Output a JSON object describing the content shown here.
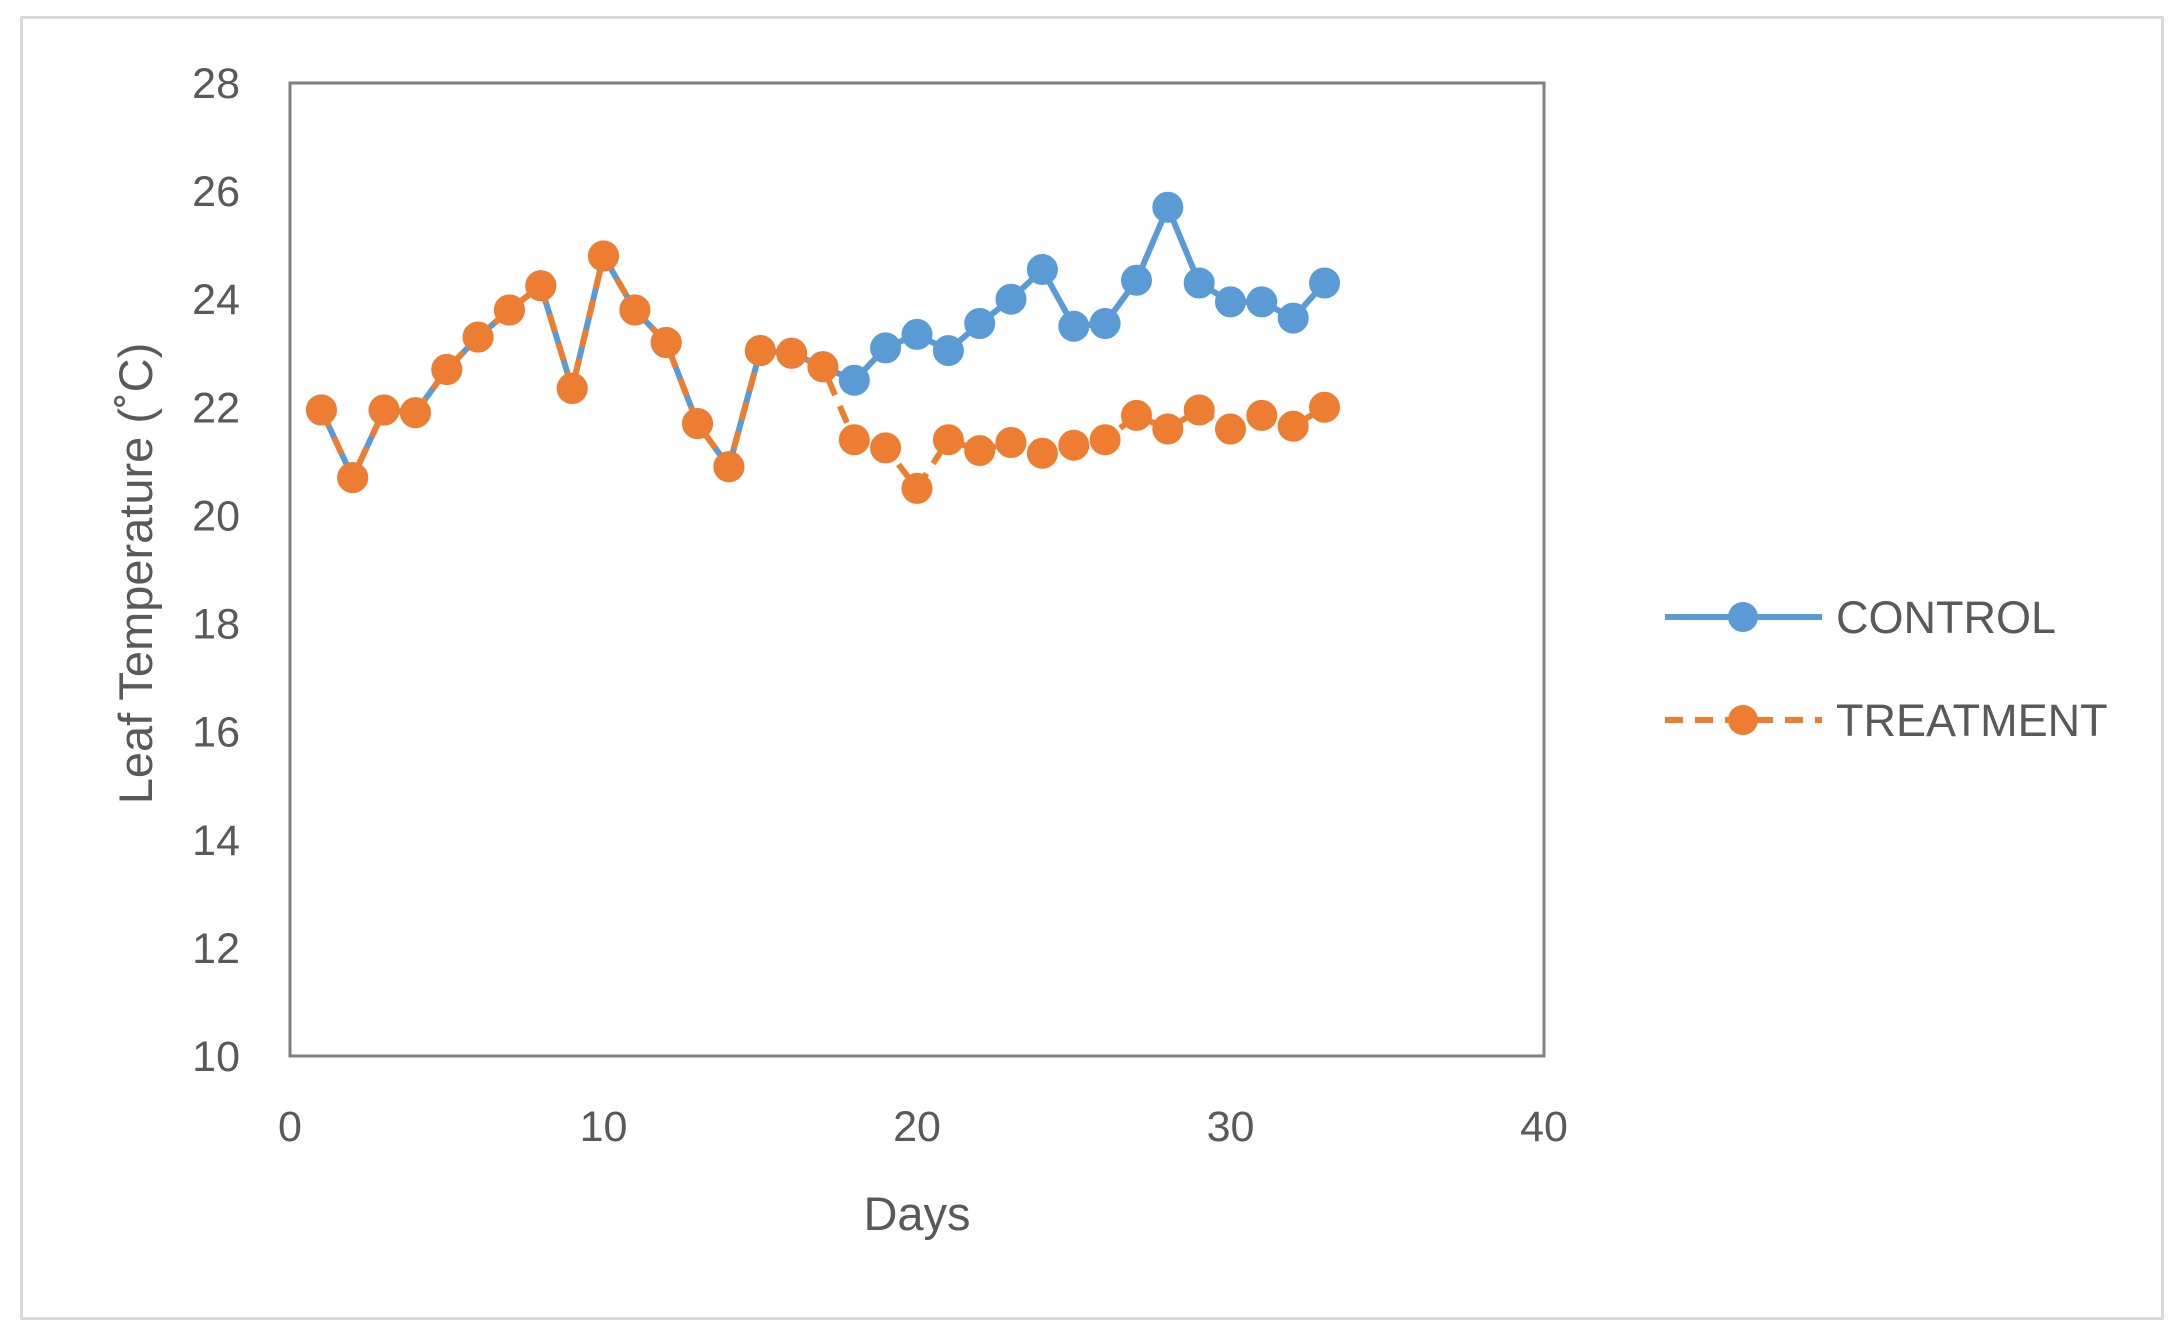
{
  "chart_data": {
    "type": "line",
    "title": "",
    "xlabel": "Days",
    "ylabel": "Leaf Temperature (˚C)",
    "xlim": [
      0,
      40
    ],
    "ylim": [
      10,
      28
    ],
    "x_ticks": [
      0,
      10,
      20,
      30,
      40
    ],
    "y_ticks": [
      10,
      12,
      14,
      16,
      18,
      20,
      22,
      24,
      26,
      28
    ],
    "grid": false,
    "legend_position": "right",
    "series": [
      {
        "name": "CONTROL",
        "color": "#5b9bd5",
        "line_style": "solid",
        "marker": "circle",
        "x": [
          1,
          2,
          3,
          4,
          5,
          6,
          7,
          8,
          9,
          10,
          11,
          12,
          13,
          14,
          15,
          16,
          17,
          18,
          19,
          20,
          21,
          22,
          23,
          24,
          25,
          26,
          27,
          28,
          29,
          30,
          31,
          32,
          33
        ],
        "y": [
          21.95,
          20.7,
          21.95,
          21.9,
          22.7,
          23.3,
          23.8,
          24.25,
          22.35,
          24.8,
          23.8,
          23.2,
          21.7,
          20.9,
          23.05,
          23.0,
          22.75,
          22.5,
          23.1,
          23.35,
          23.05,
          23.55,
          24.0,
          24.55,
          23.5,
          23.55,
          24.35,
          25.7,
          24.3,
          23.95,
          23.95,
          23.65,
          24.3
        ]
      },
      {
        "name": "TREATMENT",
        "color": "#ed7d31",
        "line_style": "dashed",
        "marker": "circle",
        "x": [
          1,
          2,
          3,
          4,
          5,
          6,
          7,
          8,
          9,
          10,
          11,
          12,
          13,
          14,
          15,
          16,
          17,
          18,
          19,
          20,
          21,
          22,
          23,
          24,
          25,
          26,
          27,
          28,
          29,
          30,
          31,
          32,
          33
        ],
        "y": [
          21.95,
          20.7,
          21.95,
          21.9,
          22.7,
          23.3,
          23.8,
          24.25,
          22.35,
          24.8,
          23.8,
          23.2,
          21.7,
          20.9,
          23.05,
          23.0,
          22.75,
          21.4,
          21.25,
          20.5,
          21.4,
          21.2,
          21.35,
          21.15,
          21.3,
          21.4,
          21.85,
          21.6,
          21.95,
          21.6,
          21.85,
          21.65,
          22.0
        ]
      }
    ]
  }
}
